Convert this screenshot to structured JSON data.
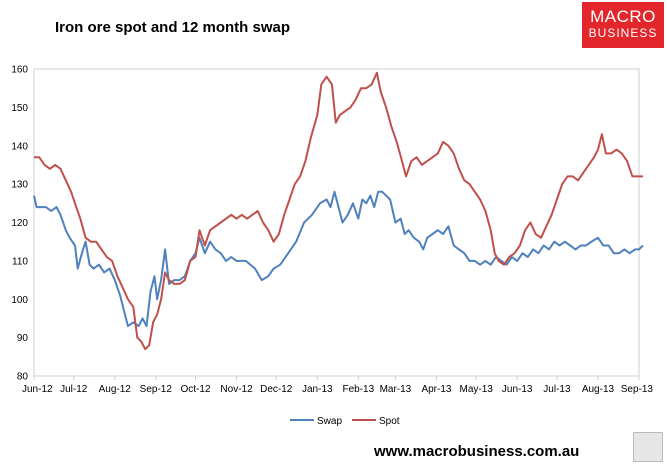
{
  "title": "Iron ore spot and 12 month swap",
  "logo": {
    "line1": "MACRO",
    "line2": "BUSINESS"
  },
  "footer_url": "www.macrobusiness.com.au",
  "icons": {
    "corner_logo": "wolf-icon"
  },
  "colors": {
    "swap": "#4f81bd",
    "spot": "#c0504d"
  },
  "chart_data": {
    "type": "line",
    "title": "Iron ore spot and 12 month swap",
    "xlabel": "",
    "ylabel": "",
    "ylim": [
      80,
      160
    ],
    "yticks": [
      80,
      90,
      100,
      110,
      120,
      130,
      140,
      150,
      160
    ],
    "xlim": [
      "2012-06-01",
      "2013-09-01"
    ],
    "categories": [
      "Jun-12",
      "Jul-12",
      "Aug-12",
      "Sep-12",
      "Oct-12",
      "Nov-12",
      "Dec-12",
      "Jan-13",
      "Feb-13",
      "Mar-13",
      "Apr-13",
      "May-13",
      "Jun-13",
      "Jul-13",
      "Aug-13",
      "Sep-13"
    ],
    "grid": false,
    "legend": "bottom",
    "series": [
      {
        "name": "Swap",
        "color": "#4f81bd",
        "points": [
          [
            "2012-06-01",
            127
          ],
          [
            "2012-06-03",
            124
          ],
          [
            "2012-06-10",
            124
          ],
          [
            "2012-06-14",
            123
          ],
          [
            "2012-06-18",
            124
          ],
          [
            "2012-06-21",
            122
          ],
          [
            "2012-06-25",
            118
          ],
          [
            "2012-06-28",
            116
          ],
          [
            "2012-07-02",
            114
          ],
          [
            "2012-07-04",
            108
          ],
          [
            "2012-07-08",
            113
          ],
          [
            "2012-07-10",
            115
          ],
          [
            "2012-07-13",
            109
          ],
          [
            "2012-07-16",
            108
          ],
          [
            "2012-07-20",
            109
          ],
          [
            "2012-07-24",
            107
          ],
          [
            "2012-07-28",
            108
          ],
          [
            "2012-08-01",
            105
          ],
          [
            "2012-08-05",
            101
          ],
          [
            "2012-08-08",
            97
          ],
          [
            "2012-08-11",
            93
          ],
          [
            "2012-08-15",
            94
          ],
          [
            "2012-08-19",
            93
          ],
          [
            "2012-08-22",
            95
          ],
          [
            "2012-08-25",
            93
          ],
          [
            "2012-08-28",
            102
          ],
          [
            "2012-08-31",
            106
          ],
          [
            "2012-09-02",
            100
          ],
          [
            "2012-09-05",
            105
          ],
          [
            "2012-09-08",
            113
          ],
          [
            "2012-09-11",
            104
          ],
          [
            "2012-09-15",
            105
          ],
          [
            "2012-09-19",
            105
          ],
          [
            "2012-09-23",
            106
          ],
          [
            "2012-09-27",
            110
          ],
          [
            "2012-10-01",
            112
          ],
          [
            "2012-10-04",
            116
          ],
          [
            "2012-10-08",
            112
          ],
          [
            "2012-10-12",
            115
          ],
          [
            "2012-10-16",
            113
          ],
          [
            "2012-10-20",
            112
          ],
          [
            "2012-10-24",
            110
          ],
          [
            "2012-10-28",
            111
          ],
          [
            "2012-11-01",
            110
          ],
          [
            "2012-11-08",
            110
          ],
          [
            "2012-11-15",
            108
          ],
          [
            "2012-11-20",
            105
          ],
          [
            "2012-11-25",
            106
          ],
          [
            "2012-11-29",
            108
          ],
          [
            "2012-12-04",
            109
          ],
          [
            "2012-12-10",
            112
          ],
          [
            "2012-12-16",
            115
          ],
          [
            "2012-12-22",
            120
          ],
          [
            "2012-12-28",
            122
          ],
          [
            "2013-01-03",
            125
          ],
          [
            "2013-01-08",
            126
          ],
          [
            "2013-01-11",
            124
          ],
          [
            "2013-01-14",
            128
          ],
          [
            "2013-01-17",
            124
          ],
          [
            "2013-01-20",
            120
          ],
          [
            "2013-01-24",
            122
          ],
          [
            "2013-01-28",
            125
          ],
          [
            "2013-02-01",
            121
          ],
          [
            "2013-02-04",
            126
          ],
          [
            "2013-02-07",
            125
          ],
          [
            "2013-02-10",
            127
          ],
          [
            "2013-02-13",
            124
          ],
          [
            "2013-02-16",
            128
          ],
          [
            "2013-02-19",
            128
          ],
          [
            "2013-02-22",
            127
          ],
          [
            "2013-02-25",
            126
          ],
          [
            "2013-03-01",
            120
          ],
          [
            "2013-03-05",
            121
          ],
          [
            "2013-03-08",
            117
          ],
          [
            "2013-03-11",
            118
          ],
          [
            "2013-03-15",
            116
          ],
          [
            "2013-03-19",
            115
          ],
          [
            "2013-03-22",
            113
          ],
          [
            "2013-03-25",
            116
          ],
          [
            "2013-03-29",
            117
          ],
          [
            "2013-04-02",
            118
          ],
          [
            "2013-04-06",
            117
          ],
          [
            "2013-04-10",
            119
          ],
          [
            "2013-04-14",
            114
          ],
          [
            "2013-04-18",
            113
          ],
          [
            "2013-04-22",
            112
          ],
          [
            "2013-04-26",
            110
          ],
          [
            "2013-04-30",
            110
          ],
          [
            "2013-05-04",
            109
          ],
          [
            "2013-05-08",
            110
          ],
          [
            "2013-05-12",
            109
          ],
          [
            "2013-05-16",
            111
          ],
          [
            "2013-05-20",
            110
          ],
          [
            "2013-05-24",
            109
          ],
          [
            "2013-05-28",
            111
          ],
          [
            "2013-06-01",
            110
          ],
          [
            "2013-06-05",
            112
          ],
          [
            "2013-06-09",
            111
          ],
          [
            "2013-06-13",
            113
          ],
          [
            "2013-06-17",
            112
          ],
          [
            "2013-06-21",
            114
          ],
          [
            "2013-06-25",
            113
          ],
          [
            "2013-06-29",
            115
          ],
          [
            "2013-07-03",
            114
          ],
          [
            "2013-07-07",
            115
          ],
          [
            "2013-07-11",
            114
          ],
          [
            "2013-07-15",
            113
          ],
          [
            "2013-07-19",
            114
          ],
          [
            "2013-07-23",
            114
          ],
          [
            "2013-07-27",
            115
          ],
          [
            "2013-08-01",
            116
          ],
          [
            "2013-08-05",
            114
          ],
          [
            "2013-08-09",
            114
          ],
          [
            "2013-08-13",
            112
          ],
          [
            "2013-08-17",
            112
          ],
          [
            "2013-08-21",
            113
          ],
          [
            "2013-08-25",
            112
          ],
          [
            "2013-08-29",
            113
          ],
          [
            "2013-09-01",
            113
          ],
          [
            "2013-09-04",
            114
          ]
        ]
      },
      {
        "name": "Spot",
        "color": "#c0504d",
        "points": [
          [
            "2012-06-01",
            137
          ],
          [
            "2012-06-05",
            137
          ],
          [
            "2012-06-09",
            135
          ],
          [
            "2012-06-13",
            134
          ],
          [
            "2012-06-17",
            135
          ],
          [
            "2012-06-21",
            134
          ],
          [
            "2012-06-25",
            131
          ],
          [
            "2012-06-29",
            128
          ],
          [
            "2012-07-02",
            125
          ],
          [
            "2012-07-06",
            121
          ],
          [
            "2012-07-10",
            116
          ],
          [
            "2012-07-14",
            115
          ],
          [
            "2012-07-18",
            115
          ],
          [
            "2012-07-22",
            113
          ],
          [
            "2012-07-26",
            111
          ],
          [
            "2012-07-30",
            110
          ],
          [
            "2012-08-03",
            106
          ],
          [
            "2012-08-07",
            103
          ],
          [
            "2012-08-11",
            100
          ],
          [
            "2012-08-15",
            98
          ],
          [
            "2012-08-18",
            90
          ],
          [
            "2012-08-21",
            89
          ],
          [
            "2012-08-24",
            87
          ],
          [
            "2012-08-27",
            88
          ],
          [
            "2012-08-30",
            94
          ],
          [
            "2012-09-02",
            96
          ],
          [
            "2012-09-05",
            100
          ],
          [
            "2012-09-08",
            107
          ],
          [
            "2012-09-11",
            105
          ],
          [
            "2012-09-15",
            104
          ],
          [
            "2012-09-19",
            104
          ],
          [
            "2012-09-23",
            105
          ],
          [
            "2012-09-27",
            110
          ],
          [
            "2012-10-01",
            111
          ],
          [
            "2012-10-04",
            118
          ],
          [
            "2012-10-08",
            114
          ],
          [
            "2012-10-12",
            118
          ],
          [
            "2012-10-16",
            119
          ],
          [
            "2012-10-20",
            120
          ],
          [
            "2012-10-24",
            121
          ],
          [
            "2012-10-28",
            122
          ],
          [
            "2012-11-01",
            121
          ],
          [
            "2012-11-05",
            122
          ],
          [
            "2012-11-09",
            121
          ],
          [
            "2012-11-13",
            122
          ],
          [
            "2012-11-17",
            123
          ],
          [
            "2012-11-21",
            120
          ],
          [
            "2012-11-25",
            118
          ],
          [
            "2012-11-29",
            115
          ],
          [
            "2012-12-03",
            117
          ],
          [
            "2012-12-07",
            122
          ],
          [
            "2012-12-11",
            126
          ],
          [
            "2012-12-15",
            130
          ],
          [
            "2012-12-19",
            132
          ],
          [
            "2012-12-23",
            136
          ],
          [
            "2012-12-27",
            142
          ],
          [
            "2013-01-01",
            148
          ],
          [
            "2013-01-04",
            156
          ],
          [
            "2013-01-08",
            158
          ],
          [
            "2013-01-12",
            156
          ],
          [
            "2013-01-15",
            146
          ],
          [
            "2013-01-18",
            148
          ],
          [
            "2013-01-22",
            149
          ],
          [
            "2013-01-26",
            150
          ],
          [
            "2013-01-30",
            152
          ],
          [
            "2013-02-03",
            155
          ],
          [
            "2013-02-07",
            155
          ],
          [
            "2013-02-11",
            156
          ],
          [
            "2013-02-15",
            159
          ],
          [
            "2013-02-18",
            154
          ],
          [
            "2013-02-22",
            150
          ],
          [
            "2013-02-26",
            145
          ],
          [
            "2013-03-02",
            141
          ],
          [
            "2013-03-06",
            136
          ],
          [
            "2013-03-09",
            132
          ],
          [
            "2013-03-13",
            136
          ],
          [
            "2013-03-17",
            137
          ],
          [
            "2013-03-21",
            135
          ],
          [
            "2013-03-25",
            136
          ],
          [
            "2013-03-29",
            137
          ],
          [
            "2013-04-02",
            138
          ],
          [
            "2013-04-06",
            141
          ],
          [
            "2013-04-10",
            140
          ],
          [
            "2013-04-14",
            138
          ],
          [
            "2013-04-18",
            134
          ],
          [
            "2013-04-22",
            131
          ],
          [
            "2013-04-26",
            130
          ],
          [
            "2013-04-30",
            128
          ],
          [
            "2013-05-04",
            126
          ],
          [
            "2013-05-08",
            123
          ],
          [
            "2013-05-12",
            118
          ],
          [
            "2013-05-15",
            112
          ],
          [
            "2013-05-18",
            110
          ],
          [
            "2013-05-22",
            109
          ],
          [
            "2013-05-26",
            111
          ],
          [
            "2013-05-30",
            112
          ],
          [
            "2013-06-03",
            114
          ],
          [
            "2013-06-07",
            118
          ],
          [
            "2013-06-11",
            120
          ],
          [
            "2013-06-15",
            117
          ],
          [
            "2013-06-19",
            116
          ],
          [
            "2013-06-23",
            119
          ],
          [
            "2013-06-27",
            122
          ],
          [
            "2013-07-01",
            126
          ],
          [
            "2013-07-05",
            130
          ],
          [
            "2013-07-09",
            132
          ],
          [
            "2013-07-13",
            132
          ],
          [
            "2013-07-17",
            131
          ],
          [
            "2013-07-21",
            133
          ],
          [
            "2013-07-25",
            135
          ],
          [
            "2013-07-29",
            137
          ],
          [
            "2013-08-01",
            139
          ],
          [
            "2013-08-04",
            143
          ],
          [
            "2013-08-07",
            138
          ],
          [
            "2013-08-11",
            138
          ],
          [
            "2013-08-15",
            139
          ],
          [
            "2013-08-19",
            138
          ],
          [
            "2013-08-23",
            136
          ],
          [
            "2013-08-27",
            132
          ],
          [
            "2013-08-31",
            132
          ],
          [
            "2013-09-04",
            132
          ]
        ]
      }
    ]
  }
}
